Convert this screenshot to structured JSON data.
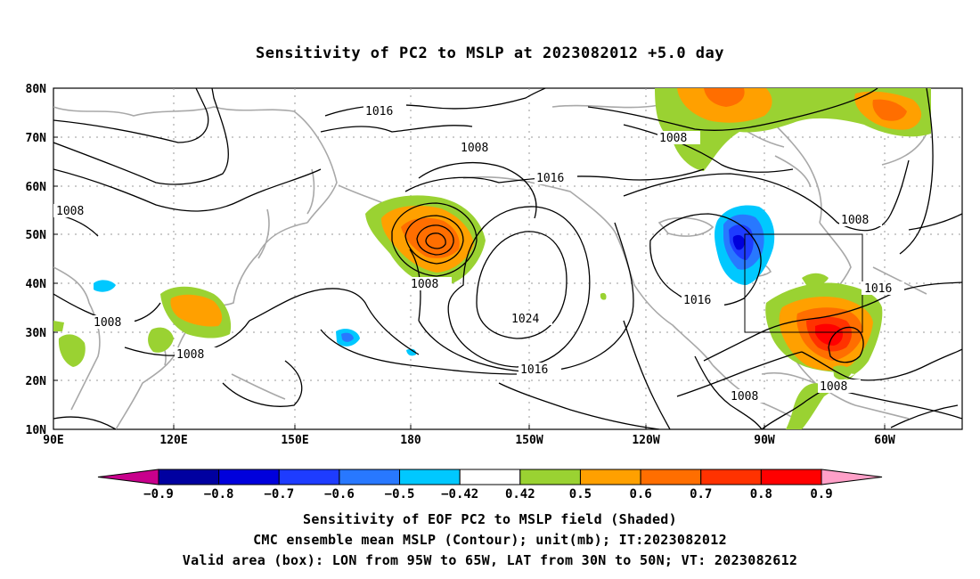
{
  "title": "Sensitivity of PC2 to MSLP at 2023082012 +5.0 day",
  "map": {
    "lat_labels": [
      "80N",
      "70N",
      "60N",
      "50N",
      "40N",
      "30N",
      "20N",
      "10N"
    ],
    "lon_labels": [
      "90E",
      "120E",
      "150E",
      "180",
      "150W",
      "120W",
      "90W",
      "60W"
    ],
    "lon_range": "90E to 30W",
    "lat_range": "10N to 80N",
    "grid": true
  },
  "contour_labels": [
    "1016",
    "1008",
    "1008",
    "1016",
    "1008",
    "1024",
    "1016",
    "1008",
    "1016",
    "1008",
    "1008",
    "1016",
    "1008",
    "1008",
    "1008"
  ],
  "colorbar": {
    "levels": [
      "-0.9",
      "-0.8",
      "-0.7",
      "-0.6",
      "-0.5",
      "-0.42",
      "0.42",
      "0.5",
      "0.6",
      "0.7",
      "0.8",
      "0.9"
    ],
    "colors": [
      "#c8008c",
      "#0000a0",
      "#0000dc",
      "#1e3cff",
      "#2878ff",
      "#00c8ff",
      "#ffffff",
      "#9ad232",
      "#ffa000",
      "#ff6e00",
      "#ff3200",
      "#ff0000",
      "#ffa0c8"
    ]
  },
  "captions": [
    "Sensitivity of EOF PC2 to MSLP field (Shaded)",
    "CMC ensemble mean MSLP (Contour); unit(mb); IT:2023082012",
    "Valid area (box): LON from 95W to 65W, LAT from 30N to 50N; VT: 2023082612"
  ]
}
